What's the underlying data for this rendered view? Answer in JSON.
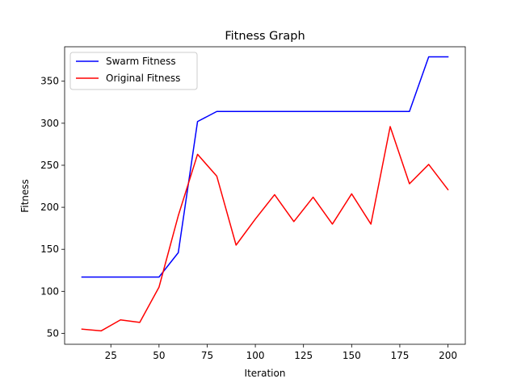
{
  "chart_data": {
    "type": "line",
    "title": "Fitness Graph",
    "xlabel": "Iteration",
    "ylabel": "Fitness",
    "xlim": [
      1,
      209
    ],
    "ylim": [
      37,
      391
    ],
    "xticks": [
      25,
      50,
      75,
      100,
      125,
      150,
      175,
      200
    ],
    "yticks": [
      50,
      100,
      150,
      200,
      250,
      300,
      350
    ],
    "x": [
      10,
      20,
      30,
      40,
      50,
      60,
      70,
      80,
      90,
      100,
      110,
      120,
      130,
      140,
      150,
      160,
      170,
      180,
      190,
      200
    ],
    "series": [
      {
        "name": "Swarm Fitness",
        "color": "#0000ff",
        "values": [
          117,
          117,
          117,
          117,
          117,
          146,
          302,
          314,
          314,
          314,
          314,
          314,
          314,
          314,
          314,
          314,
          314,
          314,
          379,
          379
        ]
      },
      {
        "name": "Original Fitness",
        "color": "#ff0000",
        "values": [
          55,
          53,
          66,
          63,
          105,
          190,
          263,
          237,
          155,
          186,
          215,
          183,
          212,
          180,
          216,
          180,
          296,
          228,
          251,
          221
        ]
      }
    ],
    "legend_position": "upper-left",
    "grid": false
  }
}
